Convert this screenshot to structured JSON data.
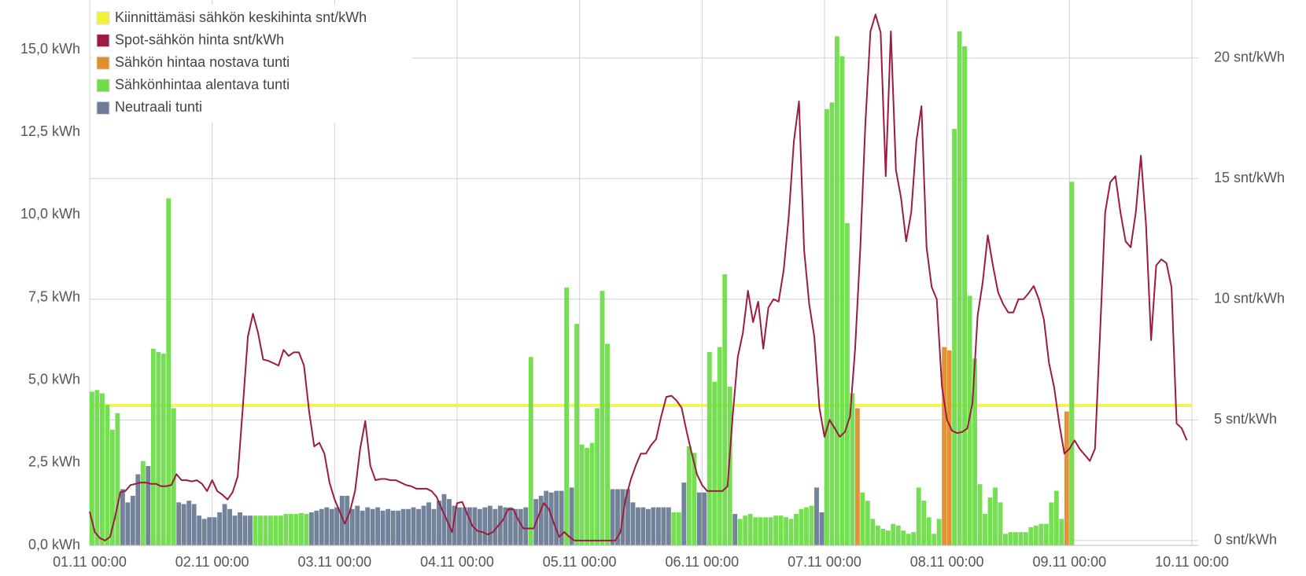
{
  "chart_data": {
    "type": "combo",
    "categories": [
      "01.11 00:00",
      null,
      null,
      null,
      null,
      null,
      null,
      null,
      null,
      null,
      null,
      null,
      null,
      null,
      null,
      null,
      null,
      null,
      null,
      null,
      null,
      null,
      null,
      null,
      "02.11 00:00",
      null,
      null,
      null,
      null,
      null,
      null,
      null,
      null,
      null,
      null,
      null,
      null,
      null,
      null,
      null,
      null,
      null,
      null,
      null,
      null,
      null,
      null,
      null,
      "03.11 00:00",
      null,
      null,
      null,
      null,
      null,
      null,
      null,
      null,
      null,
      null,
      null,
      null,
      null,
      null,
      null,
      null,
      null,
      null,
      null,
      null,
      null,
      null,
      null,
      "04.11 00:00",
      null,
      null,
      null,
      null,
      null,
      null,
      null,
      null,
      null,
      null,
      null,
      null,
      null,
      null,
      null,
      null,
      null,
      null,
      null,
      null,
      null,
      null,
      null,
      "05.11 00:00",
      null,
      null,
      null,
      null,
      null,
      null,
      null,
      null,
      null,
      null,
      null,
      null,
      null,
      null,
      null,
      null,
      null,
      null,
      null,
      null,
      null,
      null,
      null,
      "06.11 00:00",
      null,
      null,
      null,
      null,
      null,
      null,
      null,
      null,
      null,
      null,
      null,
      null,
      null,
      null,
      null,
      null,
      null,
      null,
      null,
      null,
      null,
      null,
      null,
      "07.11 00:00",
      null,
      null,
      null,
      null,
      null,
      null,
      null,
      null,
      null,
      null,
      null,
      null,
      null,
      null,
      null,
      null,
      null,
      null,
      null,
      null,
      null,
      null,
      null,
      "08.11 00:00",
      null,
      null,
      null,
      null,
      null,
      null,
      null,
      null,
      null,
      null,
      null,
      null,
      null,
      null,
      null,
      null,
      null,
      null,
      null,
      null,
      null,
      null,
      null,
      "09.11 00:00",
      null,
      null,
      null,
      null,
      null,
      null,
      null,
      null,
      null,
      null,
      null,
      null,
      null,
      null,
      null,
      null,
      null,
      null,
      null,
      null,
      null,
      null,
      null,
      "10.11 00:00"
    ],
    "series": [
      {
        "name": "Kiinnittämäsi sähkön keskihinta snt/kWh",
        "color": "#f2f23a",
        "axis": "y2",
        "value": 5.6
      },
      {
        "name": "Spot-sähkön hinta snt/kWh",
        "color": "#9b1c40",
        "axis": "y2",
        "values": [
          1.2,
          0.35,
          0.1,
          0,
          0.15,
          1.0,
          2.0,
          2.05,
          2.3,
          2.35,
          2.4,
          2.4,
          2.35,
          2.35,
          2.25,
          2.25,
          2.3,
          2.75,
          2.5,
          2.5,
          2.45,
          2.5,
          2.35,
          2.05,
          2.5,
          2.05,
          1.9,
          1.7,
          2.0,
          2.65,
          5.5,
          8.45,
          9.4,
          8.6,
          7.5,
          7.45,
          7.35,
          7.25,
          7.9,
          7.65,
          7.8,
          7.8,
          7.25,
          5.35,
          3.9,
          4.05,
          3.6,
          2.4,
          1.7,
          1.2,
          0.7,
          1.2,
          2.05,
          3.8,
          4.95,
          3.1,
          2.5,
          2.55,
          2.55,
          2.5,
          2.5,
          2.4,
          2.3,
          2.25,
          2.15,
          2.15,
          2.15,
          2.05,
          1.8,
          1.3,
          0.85,
          0.35,
          1.55,
          1.6,
          1.1,
          0.6,
          0.4,
          0.35,
          0.25,
          0.35,
          0.6,
          0.85,
          1.3,
          1.3,
          0.85,
          0.5,
          0.5,
          0.5,
          1.05,
          1.55,
          1.3,
          0.7,
          0.15,
          0.35,
          0.15,
          0,
          0,
          0,
          0,
          0,
          0,
          0,
          0,
          0,
          0.35,
          1.7,
          2.5,
          3.1,
          3.6,
          3.6,
          3.95,
          4.2,
          5.15,
          5.95,
          6.0,
          5.8,
          5.5,
          4.5,
          3.6,
          2.75,
          2.3,
          2.05,
          2.05,
          2.05,
          2.05,
          2.25,
          5.15,
          7.6,
          8.6,
          10.35,
          9.05,
          9.9,
          7.95,
          9.65,
          10.0,
          9.9,
          11.2,
          13.45,
          16.55,
          18.2,
          12.05,
          9.8,
          8.45,
          5.5,
          4.3,
          5.0,
          4.65,
          4.3,
          4.5,
          5.15,
          7.95,
          12.05,
          17.25,
          21.1,
          21.8,
          21.05,
          15.1,
          21.1,
          15.35,
          14.2,
          12.4,
          13.6,
          16.55,
          18.0,
          12.15,
          10.5,
          10.0,
          6.4,
          5.0,
          4.55,
          4.45,
          4.5,
          4.65,
          5.7,
          9.3,
          10.7,
          12.65,
          11.4,
          10.3,
          9.8,
          9.45,
          9.45,
          10.0,
          10.0,
          10.25,
          10.55,
          10.0,
          9.15,
          7.35,
          6.35,
          4.85,
          3.6,
          3.8,
          4.15,
          3.8,
          3.55,
          3.3,
          3.8,
          8.6,
          13.6,
          14.85,
          15.1,
          13.6,
          12.4,
          12.15,
          13.6,
          15.95,
          13.1,
          8.3,
          11.4,
          11.65,
          11.5,
          10.5,
          4.85,
          4.65,
          4.15,
          null
        ]
      },
      {
        "name": "Sähkön hintaa nostava tunti",
        "color": "#df8e2c",
        "values": [
          null,
          null,
          null,
          null,
          null,
          null,
          null,
          null,
          null,
          null,
          null,
          null,
          null,
          null,
          null,
          null,
          null,
          null,
          null,
          null,
          null,
          null,
          null,
          null,
          null,
          null,
          null,
          null,
          null,
          null,
          null,
          null,
          null,
          null,
          null,
          null,
          null,
          null,
          null,
          null,
          null,
          null,
          null,
          null,
          null,
          null,
          null,
          null,
          null,
          null,
          null,
          null,
          null,
          null,
          null,
          null,
          null,
          null,
          null,
          null,
          null,
          null,
          null,
          null,
          null,
          null,
          null,
          null,
          null,
          null,
          null,
          null,
          null,
          null,
          null,
          null,
          null,
          null,
          null,
          null,
          null,
          null,
          null,
          null,
          null,
          null,
          null,
          null,
          null,
          null,
          null,
          null,
          null,
          null,
          null,
          null,
          null,
          null,
          null,
          null,
          null,
          null,
          null,
          null,
          null,
          null,
          null,
          null,
          null,
          null,
          null,
          null,
          null,
          null,
          null,
          null,
          null,
          null,
          null,
          null,
          null,
          null,
          null,
          null,
          null,
          null,
          null,
          null,
          null,
          null,
          null,
          null,
          null,
          null,
          null,
          null,
          null,
          null,
          null,
          null,
          null,
          null,
          null,
          null,
          null,
          null,
          null,
          null,
          null,
          null,
          4.15,
          null,
          null,
          null,
          null,
          null,
          null,
          null,
          null,
          null,
          null,
          null,
          null,
          null,
          null,
          null,
          null,
          6.0,
          5.9,
          null,
          null,
          null,
          null,
          null,
          null,
          null,
          null,
          null,
          null,
          null,
          null,
          null,
          null,
          null,
          null,
          null,
          null,
          null,
          null,
          null,
          null,
          4.05,
          null,
          null,
          null,
          null,
          null,
          null,
          null,
          null,
          null,
          null,
          null,
          null,
          null,
          null,
          null,
          null,
          null,
          null,
          null,
          null,
          null,
          null,
          null,
          null,
          null
        ]
      },
      {
        "name": "Sähkönhintaa alentava tunti",
        "color": "#6fdc4a",
        "values": [
          4.65,
          4.7,
          4.6,
          4.25,
          3.5,
          4.0,
          null,
          null,
          null,
          null,
          2.55,
          null,
          5.95,
          5.85,
          5.8,
          10.5,
          4.15,
          null,
          null,
          null,
          null,
          null,
          null,
          null,
          null,
          null,
          null,
          null,
          null,
          null,
          null,
          null,
          0.9,
          0.9,
          0.9,
          0.9,
          0.9,
          0.9,
          0.95,
          0.95,
          0.95,
          0.98,
          0.95,
          null,
          null,
          null,
          null,
          null,
          null,
          null,
          null,
          null,
          null,
          null,
          null,
          null,
          null,
          null,
          null,
          null,
          null,
          null,
          null,
          null,
          null,
          null,
          null,
          null,
          null,
          null,
          null,
          null,
          null,
          null,
          null,
          null,
          null,
          null,
          null,
          null,
          null,
          null,
          null,
          null,
          null,
          null,
          5.7,
          null,
          null,
          null,
          null,
          null,
          null,
          7.8,
          null,
          6.7,
          3.05,
          2.95,
          3.1,
          4.15,
          7.7,
          6.1,
          null,
          null,
          null,
          null,
          null,
          null,
          null,
          null,
          null,
          null,
          null,
          null,
          1.0,
          1.0,
          null,
          3.0,
          2.8,
          null,
          null,
          5.85,
          4.95,
          6.0,
          8.2,
          4.8,
          null,
          0.8,
          0.9,
          0.95,
          0.85,
          0.85,
          0.85,
          0.85,
          0.9,
          0.9,
          0.85,
          0.8,
          0.95,
          1.1,
          1.15,
          1.2,
          null,
          null,
          13.2,
          13.4,
          15.4,
          14.8,
          9.75,
          4.6,
          null,
          1.6,
          1.35,
          0.8,
          0.6,
          0.5,
          0.45,
          0.65,
          0.6,
          0.45,
          0.35,
          0.4,
          1.75,
          1.35,
          0.85,
          0.35,
          0.8,
          null,
          null,
          12.6,
          15.55,
          15.1,
          7.55,
          5.65,
          1.85,
          0.95,
          1.45,
          1.75,
          1.3,
          0.35,
          0.4,
          0.4,
          0.4,
          0.4,
          0.55,
          0.6,
          0.65,
          0.65,
          1.3,
          1.65,
          0.8,
          null,
          11.0,
          null,
          null,
          null,
          null,
          null,
          null,
          null,
          null,
          null,
          null,
          null,
          null,
          null,
          null,
          null,
          null,
          null,
          null,
          null,
          null,
          null,
          null,
          null,
          null
        ]
      },
      {
        "name": "Neutraali tunti",
        "color": "#6c7d95",
        "values": [
          null,
          null,
          null,
          null,
          null,
          null,
          1.7,
          1.3,
          1.5,
          2.15,
          null,
          2.4,
          null,
          null,
          null,
          null,
          null,
          1.3,
          1.25,
          1.35,
          1.25,
          0.9,
          0.8,
          0.85,
          0.85,
          1.0,
          1.25,
          1.1,
          0.9,
          1.0,
          0.9,
          0.9,
          null,
          null,
          null,
          null,
          null,
          null,
          null,
          null,
          null,
          null,
          null,
          1.0,
          1.05,
          1.1,
          1.15,
          1.1,
          1.15,
          1.5,
          1.5,
          1.1,
          1.2,
          1.05,
          1.15,
          1.1,
          1.15,
          1.05,
          1.1,
          1.05,
          1.05,
          1.1,
          1.1,
          1.15,
          1.1,
          1.2,
          1.3,
          1.1,
          1.35,
          1.55,
          1.4,
          1.2,
          1.15,
          1.15,
          1.15,
          1.15,
          1.1,
          1.15,
          1.2,
          1.1,
          1.2,
          1.15,
          1.15,
          1.1,
          1.1,
          1.15,
          null,
          1.4,
          1.5,
          1.65,
          1.6,
          1.65,
          1.65,
          null,
          1.75,
          null,
          null,
          null,
          null,
          null,
          null,
          null,
          1.7,
          1.7,
          1.7,
          1.7,
          1.3,
          1.15,
          1.15,
          1.1,
          1.15,
          1.15,
          1.15,
          1.15,
          null,
          null,
          1.9,
          null,
          null,
          1.6,
          1.6,
          null,
          null,
          null,
          null,
          null,
          0.95,
          null,
          null,
          null,
          null,
          null,
          null,
          null,
          null,
          null,
          null,
          null,
          null,
          null,
          null,
          null,
          1.75,
          1.0,
          null,
          null,
          null,
          null,
          null,
          null,
          null,
          null,
          null,
          null,
          null,
          null,
          null,
          null,
          null,
          null,
          null,
          null,
          null,
          null,
          null,
          null,
          null,
          null,
          null,
          null,
          null,
          null,
          null,
          null,
          null,
          null,
          null,
          null,
          null,
          null,
          null,
          null,
          null,
          null,
          null,
          null,
          null,
          null,
          null,
          null,
          null,
          null,
          null,
          null,
          null,
          null,
          null,
          null,
          null,
          null,
          null,
          null,
          null,
          null,
          null,
          null,
          null,
          null,
          null,
          null,
          null,
          null,
          null,
          null,
          null,
          null,
          null
        ]
      }
    ],
    "ylim": [
      0,
      16.5
    ],
    "yticks": [
      {
        "value": 0,
        "label": "0,0 kWh"
      },
      {
        "value": 2.5,
        "label": "2,5 kWh"
      },
      {
        "value": 5,
        "label": "5,0 kWh"
      },
      {
        "value": 7.5,
        "label": "7,5 kWh"
      },
      {
        "value": 10,
        "label": "10,0 kWh"
      },
      {
        "value": 12.5,
        "label": "12,5 kWh"
      },
      {
        "value": 15,
        "label": "15,0 kWh"
      }
    ],
    "y2lim": [
      -0.2,
      22.4
    ],
    "y2ticks": [
      {
        "value": 0,
        "label": "0 snt/kWh"
      },
      {
        "value": 5,
        "label": "5 snt/kWh"
      },
      {
        "value": 10,
        "label": "10 snt/kWh"
      },
      {
        "value": 15,
        "label": "15 snt/kWh"
      },
      {
        "value": 20,
        "label": "20 snt/kWh"
      }
    ],
    "grid": true,
    "legend": "top-left"
  }
}
